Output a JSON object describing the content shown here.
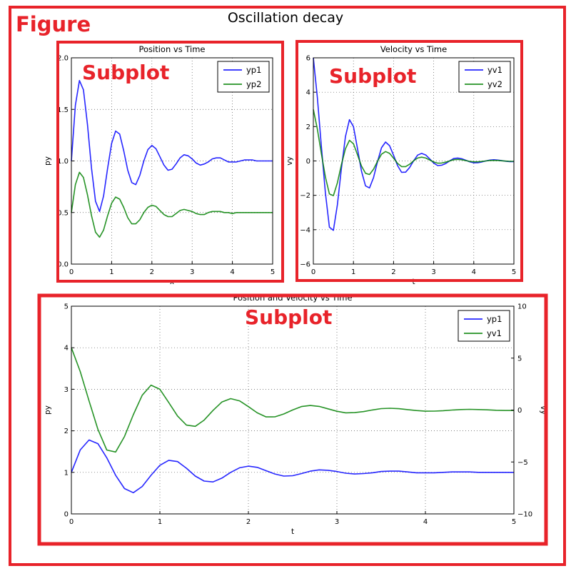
{
  "figure": {
    "title": "Oscillation decay",
    "label": "Figure",
    "subplot_label": "Subplot",
    "annotation_color": "#e8232a",
    "colors": {
      "blue": "#0000ff",
      "green": "#008000"
    }
  },
  "chart_data": [
    {
      "type": "line",
      "title": "Position vs Time",
      "xlabel": "x",
      "ylabel": "py",
      "xlim": [
        0,
        5
      ],
      "ylim": [
        0,
        2
      ],
      "xticks": [
        0,
        1,
        2,
        3,
        4,
        5
      ],
      "yticks": [
        0,
        0.5,
        1,
        1.5,
        2
      ],
      "ytick_labels": [
        "0.0",
        "0.5",
        "1.0",
        "1.5",
        "2.0"
      ],
      "grid": true,
      "legend": "top-right",
      "series": [
        {
          "name": "yp1",
          "color": "#0000ff",
          "x": [
            0,
            0.1,
            0.2,
            0.3,
            0.4,
            0.5,
            0.6,
            0.7,
            0.8,
            0.9,
            1.0,
            1.1,
            1.2,
            1.3,
            1.4,
            1.5,
            1.6,
            1.7,
            1.8,
            1.9,
            2.0,
            2.1,
            2.2,
            2.3,
            2.4,
            2.5,
            2.6,
            2.7,
            2.8,
            2.9,
            3.0,
            3.1,
            3.2,
            3.3,
            3.4,
            3.5,
            3.6,
            3.7,
            3.8,
            3.9,
            4.0,
            4.1,
            4.2,
            4.3,
            4.4,
            4.5,
            4.6,
            4.7,
            4.8,
            4.9,
            5.0
          ],
          "y": [
            1.0,
            1.54,
            1.78,
            1.69,
            1.35,
            0.93,
            0.61,
            0.51,
            0.66,
            0.93,
            1.17,
            1.29,
            1.26,
            1.1,
            0.91,
            0.79,
            0.77,
            0.86,
            1.0,
            1.11,
            1.15,
            1.12,
            1.04,
            0.96,
            0.91,
            0.92,
            0.97,
            1.03,
            1.06,
            1.05,
            1.02,
            0.98,
            0.96,
            0.97,
            0.99,
            1.02,
            1.03,
            1.03,
            1.01,
            0.99,
            0.99,
            0.99,
            1.0,
            1.01,
            1.01,
            1.01,
            1.0,
            1.0,
            1.0,
            1.0,
            1.0
          ]
        },
        {
          "name": "yp2",
          "color": "#008000",
          "x": [
            0,
            0.1,
            0.2,
            0.3,
            0.4,
            0.5,
            0.6,
            0.7,
            0.8,
            0.9,
            1.0,
            1.1,
            1.2,
            1.3,
            1.4,
            1.5,
            1.6,
            1.7,
            1.8,
            1.9,
            2.0,
            2.1,
            2.2,
            2.3,
            2.4,
            2.5,
            2.6,
            2.7,
            2.8,
            2.9,
            3.0,
            3.1,
            3.2,
            3.3,
            3.4,
            3.5,
            3.6,
            3.7,
            3.8,
            3.9,
            4.0,
            4.1,
            4.2,
            4.3,
            4.4,
            4.5,
            4.6,
            4.7,
            4.8,
            4.9,
            5.0
          ],
          "y": [
            0.5,
            0.77,
            0.89,
            0.84,
            0.67,
            0.47,
            0.31,
            0.26,
            0.33,
            0.47,
            0.59,
            0.65,
            0.63,
            0.55,
            0.45,
            0.39,
            0.39,
            0.43,
            0.5,
            0.55,
            0.57,
            0.56,
            0.52,
            0.48,
            0.46,
            0.46,
            0.49,
            0.52,
            0.53,
            0.52,
            0.51,
            0.49,
            0.48,
            0.48,
            0.5,
            0.51,
            0.51,
            0.51,
            0.5,
            0.5,
            0.49,
            0.5,
            0.5,
            0.5,
            0.5,
            0.5,
            0.5,
            0.5,
            0.5,
            0.5,
            0.5
          ]
        }
      ]
    },
    {
      "type": "line",
      "title": "Velocity vs Time",
      "xlabel": "t",
      "ylabel": "vy",
      "xlim": [
        0,
        5
      ],
      "ylim": [
        -6,
        6
      ],
      "xticks": [
        0,
        1,
        2,
        3,
        4,
        5
      ],
      "yticks": [
        -6,
        -4,
        -2,
        0,
        2,
        4,
        6
      ],
      "ytick_labels": [
        "−6",
        "−4",
        "−2",
        "0",
        "2",
        "4",
        "6"
      ],
      "grid": true,
      "legend": "top-right",
      "series": [
        {
          "name": "yv1",
          "color": "#0000ff",
          "x": [
            0,
            0.1,
            0.2,
            0.3,
            0.4,
            0.5,
            0.6,
            0.7,
            0.8,
            0.9,
            1.0,
            1.1,
            1.2,
            1.3,
            1.4,
            1.5,
            1.6,
            1.7,
            1.8,
            1.9,
            2.0,
            2.1,
            2.2,
            2.3,
            2.4,
            2.5,
            2.6,
            2.7,
            2.8,
            2.9,
            3.0,
            3.1,
            3.2,
            3.3,
            3.4,
            3.5,
            3.6,
            3.7,
            3.8,
            3.9,
            4.0,
            4.1,
            4.2,
            4.3,
            4.4,
            4.5,
            4.6,
            4.7,
            4.8,
            4.9,
            5.0
          ],
          "y": [
            6.0,
            3.71,
            0.87,
            -1.86,
            -3.85,
            -4.04,
            -2.55,
            -0.45,
            1.42,
            2.4,
            2.0,
            0.73,
            -0.58,
            -1.45,
            -1.57,
            -0.97,
            -0.04,
            0.77,
            1.1,
            0.89,
            0.33,
            -0.27,
            -0.66,
            -0.65,
            -0.38,
            0.01,
            0.34,
            0.44,
            0.35,
            0.12,
            -0.12,
            -0.27,
            -0.25,
            -0.15,
            0.01,
            0.14,
            0.17,
            0.13,
            0.04,
            -0.05,
            -0.11,
            -0.1,
            -0.06,
            0.0,
            0.05,
            0.07,
            0.05,
            0.02,
            -0.02,
            -0.04,
            -0.04
          ]
        },
        {
          "name": "yv2",
          "color": "#008000",
          "x": [
            0,
            0.1,
            0.2,
            0.3,
            0.4,
            0.5,
            0.6,
            0.7,
            0.8,
            0.9,
            1.0,
            1.1,
            1.2,
            1.3,
            1.4,
            1.5,
            1.6,
            1.7,
            1.8,
            1.9,
            2.0,
            2.1,
            2.2,
            2.3,
            2.4,
            2.5,
            2.6,
            2.7,
            2.8,
            2.9,
            3.0,
            3.1,
            3.2,
            3.3,
            3.4,
            3.5,
            3.6,
            3.7,
            3.8,
            3.9,
            4.0,
            4.1,
            4.2,
            4.3,
            4.4,
            4.5,
            4.6,
            4.7,
            4.8,
            4.9,
            5.0
          ],
          "y": [
            3.0,
            1.86,
            0.44,
            -0.93,
            -1.92,
            -2.02,
            -1.27,
            -0.22,
            0.71,
            1.2,
            1.0,
            0.37,
            -0.29,
            -0.72,
            -0.79,
            -0.48,
            -0.02,
            0.39,
            0.55,
            0.44,
            0.16,
            -0.14,
            -0.33,
            -0.33,
            -0.19,
            0.01,
            0.17,
            0.22,
            0.17,
            0.06,
            -0.06,
            -0.13,
            -0.12,
            -0.07,
            0.0,
            0.07,
            0.09,
            0.07,
            0.02,
            -0.03,
            -0.05,
            -0.05,
            -0.03,
            0.0,
            0.03,
            0.03,
            0.03,
            0.01,
            -0.01,
            -0.02,
            -0.02
          ]
        }
      ]
    },
    {
      "type": "line",
      "title": "Position and Velocity vs Time",
      "xlabel": "t",
      "ylabel": "py",
      "y2label": "vy",
      "xlim": [
        0,
        5
      ],
      "ylim": [
        0,
        5
      ],
      "y2lim": [
        -10,
        10
      ],
      "xticks": [
        0,
        1,
        2,
        3,
        4,
        5
      ],
      "yticks": [
        0,
        1,
        2,
        3,
        4,
        5
      ],
      "ytick_labels": [
        "0",
        "1",
        "2",
        "3",
        "4",
        "5"
      ],
      "y2ticks": [
        -10,
        -5,
        0,
        5,
        10
      ],
      "y2tick_labels": [
        "−10",
        "−5",
        "0",
        "5",
        "10"
      ],
      "grid": true,
      "legend": "top-right",
      "series": [
        {
          "name": "yp1",
          "color": "#0000ff",
          "axis": "left",
          "x": [
            0,
            0.1,
            0.2,
            0.3,
            0.4,
            0.5,
            0.6,
            0.7,
            0.8,
            0.9,
            1.0,
            1.1,
            1.2,
            1.3,
            1.4,
            1.5,
            1.6,
            1.7,
            1.8,
            1.9,
            2.0,
            2.1,
            2.2,
            2.3,
            2.4,
            2.5,
            2.6,
            2.7,
            2.8,
            2.9,
            3.0,
            3.1,
            3.2,
            3.3,
            3.4,
            3.5,
            3.6,
            3.7,
            3.8,
            3.9,
            4.0,
            4.1,
            4.2,
            4.3,
            4.4,
            4.5,
            4.6,
            4.7,
            4.8,
            4.9,
            5.0
          ],
          "y": [
            1.0,
            1.54,
            1.78,
            1.69,
            1.35,
            0.93,
            0.61,
            0.51,
            0.66,
            0.93,
            1.17,
            1.29,
            1.26,
            1.1,
            0.91,
            0.79,
            0.77,
            0.86,
            1.0,
            1.11,
            1.15,
            1.12,
            1.04,
            0.96,
            0.91,
            0.92,
            0.97,
            1.03,
            1.06,
            1.05,
            1.02,
            0.98,
            0.96,
            0.97,
            0.99,
            1.02,
            1.03,
            1.03,
            1.01,
            0.99,
            0.99,
            0.99,
            1.0,
            1.01,
            1.01,
            1.01,
            1.0,
            1.0,
            1.0,
            1.0,
            1.0
          ]
        },
        {
          "name": "yv1",
          "color": "#008000",
          "axis": "right",
          "x": [
            0,
            0.1,
            0.2,
            0.3,
            0.4,
            0.5,
            0.6,
            0.7,
            0.8,
            0.9,
            1.0,
            1.1,
            1.2,
            1.3,
            1.4,
            1.5,
            1.6,
            1.7,
            1.8,
            1.9,
            2.0,
            2.1,
            2.2,
            2.3,
            2.4,
            2.5,
            2.6,
            2.7,
            2.8,
            2.9,
            3.0,
            3.1,
            3.2,
            3.3,
            3.4,
            3.5,
            3.6,
            3.7,
            3.8,
            3.9,
            4.0,
            4.1,
            4.2,
            4.3,
            4.4,
            4.5,
            4.6,
            4.7,
            4.8,
            4.9,
            5.0
          ],
          "y": [
            6.0,
            3.71,
            0.87,
            -1.86,
            -3.85,
            -4.04,
            -2.55,
            -0.45,
            1.42,
            2.4,
            2.0,
            0.73,
            -0.58,
            -1.45,
            -1.57,
            -0.97,
            -0.04,
            0.77,
            1.1,
            0.89,
            0.33,
            -0.27,
            -0.66,
            -0.65,
            -0.38,
            0.01,
            0.34,
            0.44,
            0.35,
            0.12,
            -0.12,
            -0.27,
            -0.25,
            -0.15,
            0.01,
            0.14,
            0.17,
            0.13,
            0.04,
            -0.05,
            -0.11,
            -0.1,
            -0.06,
            0.0,
            0.05,
            0.07,
            0.05,
            0.02,
            -0.02,
            -0.04,
            -0.04
          ]
        }
      ]
    }
  ]
}
